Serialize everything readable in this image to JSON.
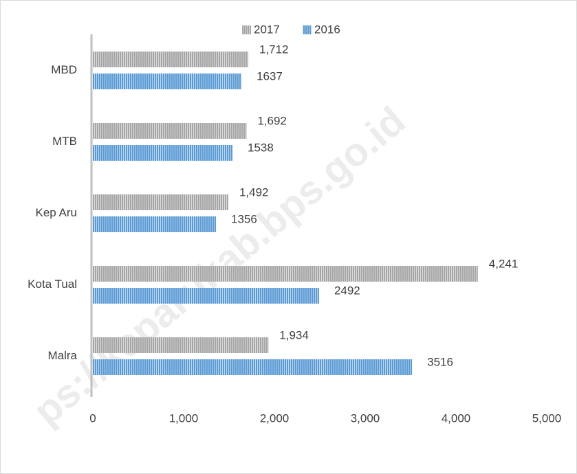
{
  "chart_data": {
    "type": "hbar",
    "categories": [
      "MBD",
      "MTB",
      "Kep Aru",
      "Kota Tual",
      "Malra"
    ],
    "series": [
      {
        "name": "2017",
        "color": "#a6a6a6",
        "values": [
          1712,
          1692,
          1492,
          4241,
          1934
        ],
        "value_labels": [
          "1,712",
          "1,692",
          "1,492",
          "4,241",
          "1,934"
        ]
      },
      {
        "name": "2016",
        "color": "#5b9bd5",
        "values": [
          1637,
          1538,
          1356,
          2492,
          3516
        ]
      }
    ],
    "xlim": [
      0,
      5000
    ],
    "xticks": [
      0,
      {
        "value": 1000,
        "label": "1,000"
      },
      {
        "value": 2000,
        "label": "2,000"
      },
      {
        "value": 3000,
        "label": "3,000"
      },
      {
        "value": 4000,
        "label": "4,000"
      },
      {
        "value": 5000,
        "label": "5,000"
      }
    ],
    "legend": "top",
    "watermark": "ps://keparukab.bps.go.id"
  }
}
